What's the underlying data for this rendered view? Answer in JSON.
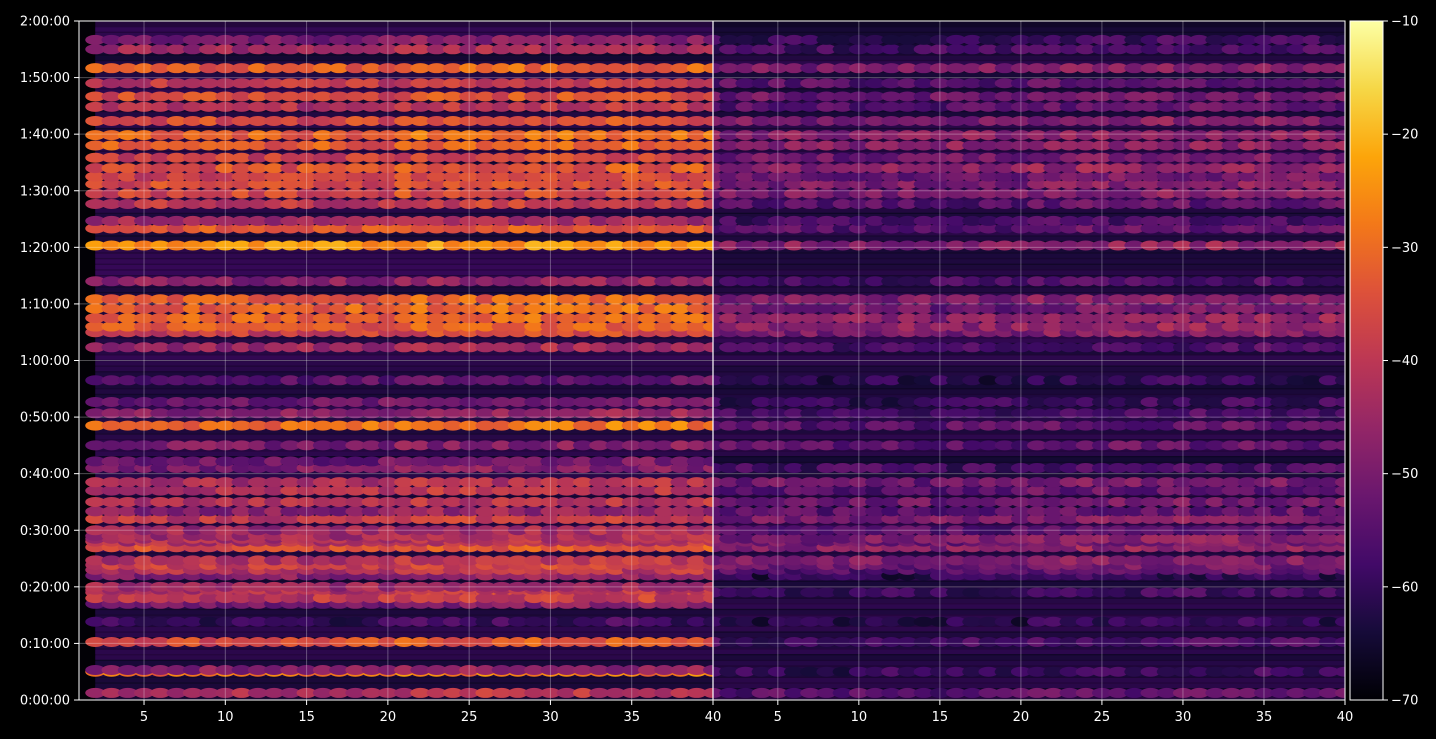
{
  "chart_data": {
    "type": "heatmap",
    "title": "",
    "panels": [
      {
        "name": "",
        "xlim": [
          1,
          40
        ],
        "xticks": [
          5,
          10,
          15,
          20,
          25,
          30,
          35,
          40
        ],
        "active_band_hz_approx": [
          2,
          40
        ],
        "bands": [
          {
            "t": 75,
            "v": -42
          },
          {
            "t": 300,
            "v": -30
          },
          {
            "t": 318,
            "v": -48
          },
          {
            "t": 615,
            "v": -35
          },
          {
            "t": 830,
            "v": -60
          },
          {
            "t": 1140,
            "v": -40
          },
          {
            "t": 1320,
            "v": -48
          },
          {
            "t": 1020,
            "v": -50
          },
          {
            "t": 1080,
            "v": -40
          },
          {
            "t": 1170,
            "v": -42
          },
          {
            "t": 1200,
            "v": -45
          },
          {
            "t": 1380,
            "v": -42
          },
          {
            "t": 1432,
            "v": -38
          },
          {
            "t": 1480,
            "v": -42
          },
          {
            "t": 1620,
            "v": -35
          },
          {
            "t": 1680,
            "v": -42
          },
          {
            "t": 1710,
            "v": -43
          },
          {
            "t": 1740,
            "v": -44
          },
          {
            "t": 1800,
            "v": -45
          },
          {
            "t": 1920,
            "v": -40
          },
          {
            "t": 2000,
            "v": -48
          },
          {
            "t": 2100,
            "v": -42
          },
          {
            "t": 2220,
            "v": -42
          },
          {
            "t": 2310,
            "v": -43
          },
          {
            "t": 2460,
            "v": -50
          },
          {
            "t": 2530,
            "v": -52
          },
          {
            "t": 2700,
            "v": -50
          },
          {
            "t": 2910,
            "v": -30
          },
          {
            "t": 3040,
            "v": -48
          },
          {
            "t": 3160,
            "v": -52
          },
          {
            "t": 3390,
            "v": -55
          },
          {
            "t": 3740,
            "v": -45
          },
          {
            "t": 3900,
            "v": -38
          },
          {
            "t": 3960,
            "v": -33
          },
          {
            "t": 4050,
            "v": -32
          },
          {
            "t": 4150,
            "v": -32
          },
          {
            "t": 4250,
            "v": -33
          },
          {
            "t": 4440,
            "v": -48
          },
          {
            "t": 4820,
            "v": -25
          },
          {
            "t": 5000,
            "v": -34
          },
          {
            "t": 5080,
            "v": -45
          },
          {
            "t": 5260,
            "v": -40
          },
          {
            "t": 5370,
            "v": -37
          },
          {
            "t": 5470,
            "v": -36
          },
          {
            "t": 5550,
            "v": -38
          },
          {
            "t": 5640,
            "v": -35
          },
          {
            "t": 5750,
            "v": -38
          },
          {
            "t": 5880,
            "v": -33
          },
          {
            "t": 5990,
            "v": -32
          },
          {
            "t": 6140,
            "v": -36
          },
          {
            "t": 6290,
            "v": -42
          },
          {
            "t": 6400,
            "v": -36
          },
          {
            "t": 6540,
            "v": -40
          },
          {
            "t": 6700,
            "v": -33
          },
          {
            "t": 6900,
            "v": -45
          },
          {
            "t": 7000,
            "v": -50
          }
        ]
      },
      {
        "name": "",
        "xlim": [
          1,
          40
        ],
        "xticks": [
          5,
          10,
          15,
          20,
          25,
          30,
          35,
          40
        ],
        "active_band_hz_approx": [
          1,
          40
        ],
        "bands": [
          {
            "t": 75,
            "v": -55
          },
          {
            "t": 300,
            "v": -60
          },
          {
            "t": 615,
            "v": -58
          },
          {
            "t": 830,
            "v": -62
          },
          {
            "t": 1140,
            "v": -60
          },
          {
            "t": 1320,
            "v": -62
          },
          {
            "t": 1380,
            "v": -55
          },
          {
            "t": 1432,
            "v": -52
          },
          {
            "t": 1480,
            "v": -50
          },
          {
            "t": 1620,
            "v": -48
          },
          {
            "t": 1680,
            "v": -52
          },
          {
            "t": 1710,
            "v": -50
          },
          {
            "t": 1800,
            "v": -55
          },
          {
            "t": 1920,
            "v": -50
          },
          {
            "t": 2000,
            "v": -55
          },
          {
            "t": 2100,
            "v": -52
          },
          {
            "t": 2220,
            "v": -55
          },
          {
            "t": 2310,
            "v": -52
          },
          {
            "t": 2460,
            "v": -58
          },
          {
            "t": 2700,
            "v": -55
          },
          {
            "t": 2910,
            "v": -55
          },
          {
            "t": 3040,
            "v": -58
          },
          {
            "t": 3160,
            "v": -60
          },
          {
            "t": 3390,
            "v": -62
          },
          {
            "t": 3740,
            "v": -58
          },
          {
            "t": 3900,
            "v": -50
          },
          {
            "t": 3960,
            "v": -48
          },
          {
            "t": 4050,
            "v": -48
          },
          {
            "t": 4150,
            "v": -52
          },
          {
            "t": 4250,
            "v": -50
          },
          {
            "t": 4440,
            "v": -58
          },
          {
            "t": 4820,
            "v": -48
          },
          {
            "t": 5000,
            "v": -55
          },
          {
            "t": 5080,
            "v": -58
          },
          {
            "t": 5260,
            "v": -55
          },
          {
            "t": 5370,
            "v": -50
          },
          {
            "t": 5470,
            "v": -50
          },
          {
            "t": 5550,
            "v": -52
          },
          {
            "t": 5640,
            "v": -48
          },
          {
            "t": 5750,
            "v": -52
          },
          {
            "t": 5880,
            "v": -48
          },
          {
            "t": 5990,
            "v": -48
          },
          {
            "t": 6140,
            "v": -50
          },
          {
            "t": 6290,
            "v": -55
          },
          {
            "t": 6400,
            "v": -52
          },
          {
            "t": 6540,
            "v": -55
          },
          {
            "t": 6700,
            "v": -50
          },
          {
            "t": 6900,
            "v": -58
          },
          {
            "t": 7000,
            "v": -60
          }
        ]
      }
    ],
    "ylim_seconds": [
      0,
      7200
    ],
    "yticks": [
      "0:00:00",
      "0:10:00",
      "0:20:00",
      "0:30:00",
      "0:40:00",
      "0:50:00",
      "1:00:00",
      "1:10:00",
      "1:20:00",
      "1:30:00",
      "1:40:00",
      "1:50:00",
      "2:00:00"
    ],
    "colorbar": {
      "colormap": "inferno",
      "vmin": -70,
      "vmax": -10,
      "ticks": [
        "−70",
        "−60",
        "−50",
        "−40",
        "−30",
        "−20",
        "−10"
      ]
    },
    "grid": true
  }
}
